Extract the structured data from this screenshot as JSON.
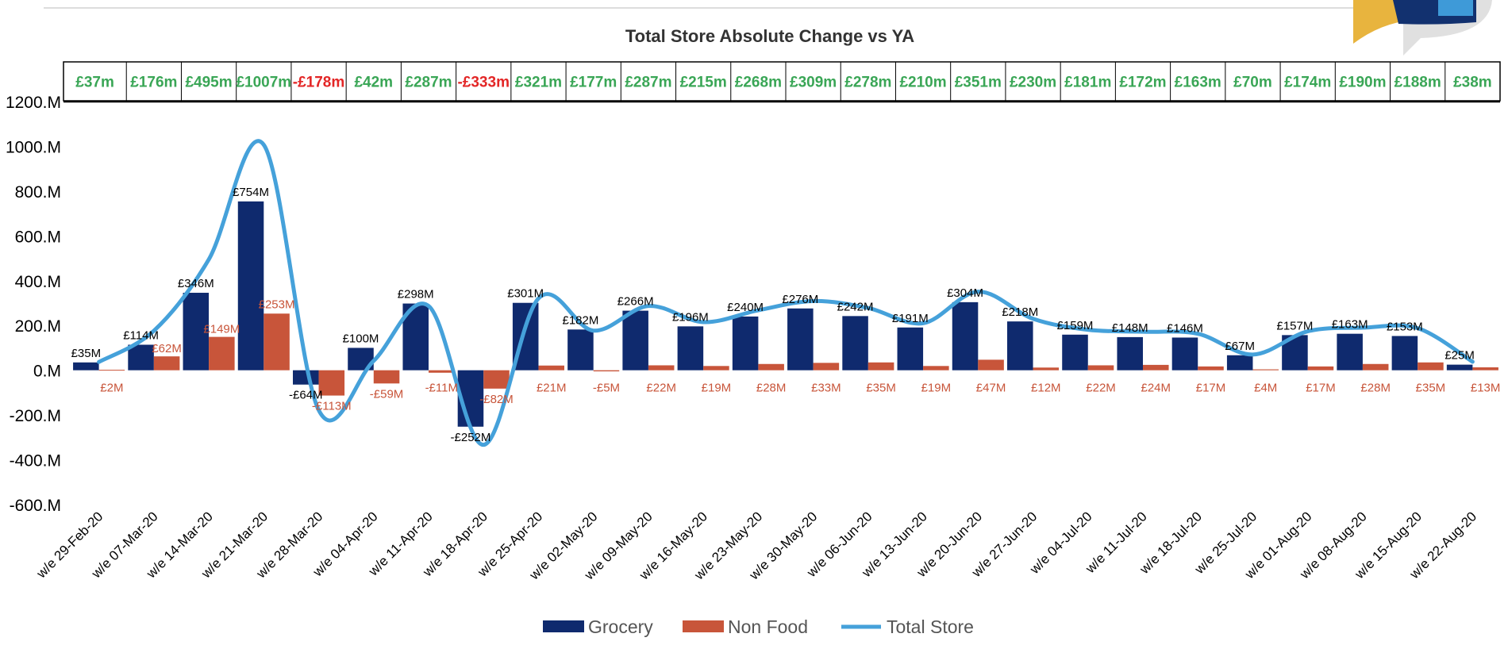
{
  "colors": {
    "grocery": "#0f2a6e",
    "non_food": "#c8553a",
    "total_store": "#45a1da",
    "positive_text": "#3aa656",
    "negative_text": "#e32626"
  },
  "logo": {
    "name": "brand-logo-icon"
  },
  "chart_data": {
    "type": "bar",
    "title": "Total Store Absolute Change vs YA",
    "xlabel": "",
    "ylabel": "",
    "ylim": [
      -600,
      1200
    ],
    "y_ticks": [
      1200,
      1000,
      800,
      600,
      400,
      200,
      0,
      -200,
      -400,
      -600
    ],
    "y_tick_labels": [
      "1200.M",
      "1000.M",
      "800.M",
      "600.M",
      "400.M",
      "200.M",
      "0.M",
      "-200.M",
      "-400.M",
      "-600.M"
    ],
    "grid": false,
    "legend_position": "bottom",
    "categories": [
      "w/e 29-Feb-20",
      "w/e 07-Mar-20",
      "w/e 14-Mar-20",
      "w/e 21-Mar-20",
      "w/e 28-Mar-20",
      "w/e 04-Apr-20",
      "w/e 11-Apr-20",
      "w/e 18-Apr-20",
      "w/e 25-Apr-20",
      "w/e 02-May-20",
      "w/e 09-May-20",
      "w/e 16-May-20",
      "w/e 23-May-20",
      "w/e 30-May-20",
      "w/e 06-Jun-20",
      "w/e 13-Jun-20",
      "w/e 20-Jun-20",
      "w/e 27-Jun-20",
      "w/e 04-Jul-20",
      "w/e 11-Jul-20",
      "w/e 18-Jul-20",
      "w/e 25-Jul-20",
      "w/e 01-Aug-20",
      "w/e 08-Aug-20",
      "w/e 15-Aug-20",
      "w/e 22-Aug-20"
    ],
    "series": [
      {
        "name": "Grocery",
        "type": "bar",
        "values": [
          35,
          114,
          346,
          754,
          -64,
          100,
          298,
          -252,
          301,
          182,
          266,
          196,
          240,
          276,
          242,
          191,
          304,
          218,
          159,
          148,
          146,
          67,
          157,
          163,
          153,
          25
        ],
        "labels": [
          "£35M",
          "£114M",
          "£346M",
          "£754M",
          "-£64M",
          "£100M",
          "£298M",
          "-£252M",
          "£301M",
          "£182M",
          "£266M",
          "£196M",
          "£240M",
          "£276M",
          "£242M",
          "£191M",
          "£304M",
          "£218M",
          "£159M",
          "£148M",
          "£146M",
          "£67M",
          "£157M",
          "£163M",
          "£153M",
          "£25M"
        ]
      },
      {
        "name": "Non Food",
        "type": "bar",
        "values": [
          2,
          62,
          149,
          253,
          -113,
          -59,
          -11,
          -82,
          21,
          -5,
          22,
          19,
          28,
          33,
          35,
          19,
          47,
          12,
          22,
          24,
          17,
          4,
          17,
          28,
          35,
          13
        ],
        "labels": [
          "£2M",
          "£62M",
          "£149M",
          "£253M",
          "-£113M",
          "-£59M",
          "-£11M",
          "-£82M",
          "£21M",
          "-£5M",
          "£22M",
          "£19M",
          "£28M",
          "£33M",
          "£35M",
          "£19M",
          "£47M",
          "£12M",
          "£22M",
          "£24M",
          "£17M",
          "£4M",
          "£17M",
          "£28M",
          "£35M",
          "£13M"
        ]
      },
      {
        "name": "Total Store",
        "type": "line",
        "values": [
          37,
          176,
          495,
          1007,
          -178,
          42,
          287,
          -333,
          321,
          177,
          287,
          215,
          268,
          309,
          278,
          210,
          351,
          230,
          181,
          172,
          163,
          70,
          174,
          190,
          188,
          38
        ]
      }
    ],
    "totals_table": [
      "£37m",
      "£176m",
      "£495m",
      "£1007m",
      "-£178m",
      "£42m",
      "£287m",
      "-£333m",
      "£321m",
      "£177m",
      "£287m",
      "£215m",
      "£268m",
      "£309m",
      "£278m",
      "£210m",
      "£351m",
      "£230m",
      "£181m",
      "£172m",
      "£163m",
      "£70m",
      "£174m",
      "£190m",
      "£188m",
      "£38m"
    ]
  }
}
